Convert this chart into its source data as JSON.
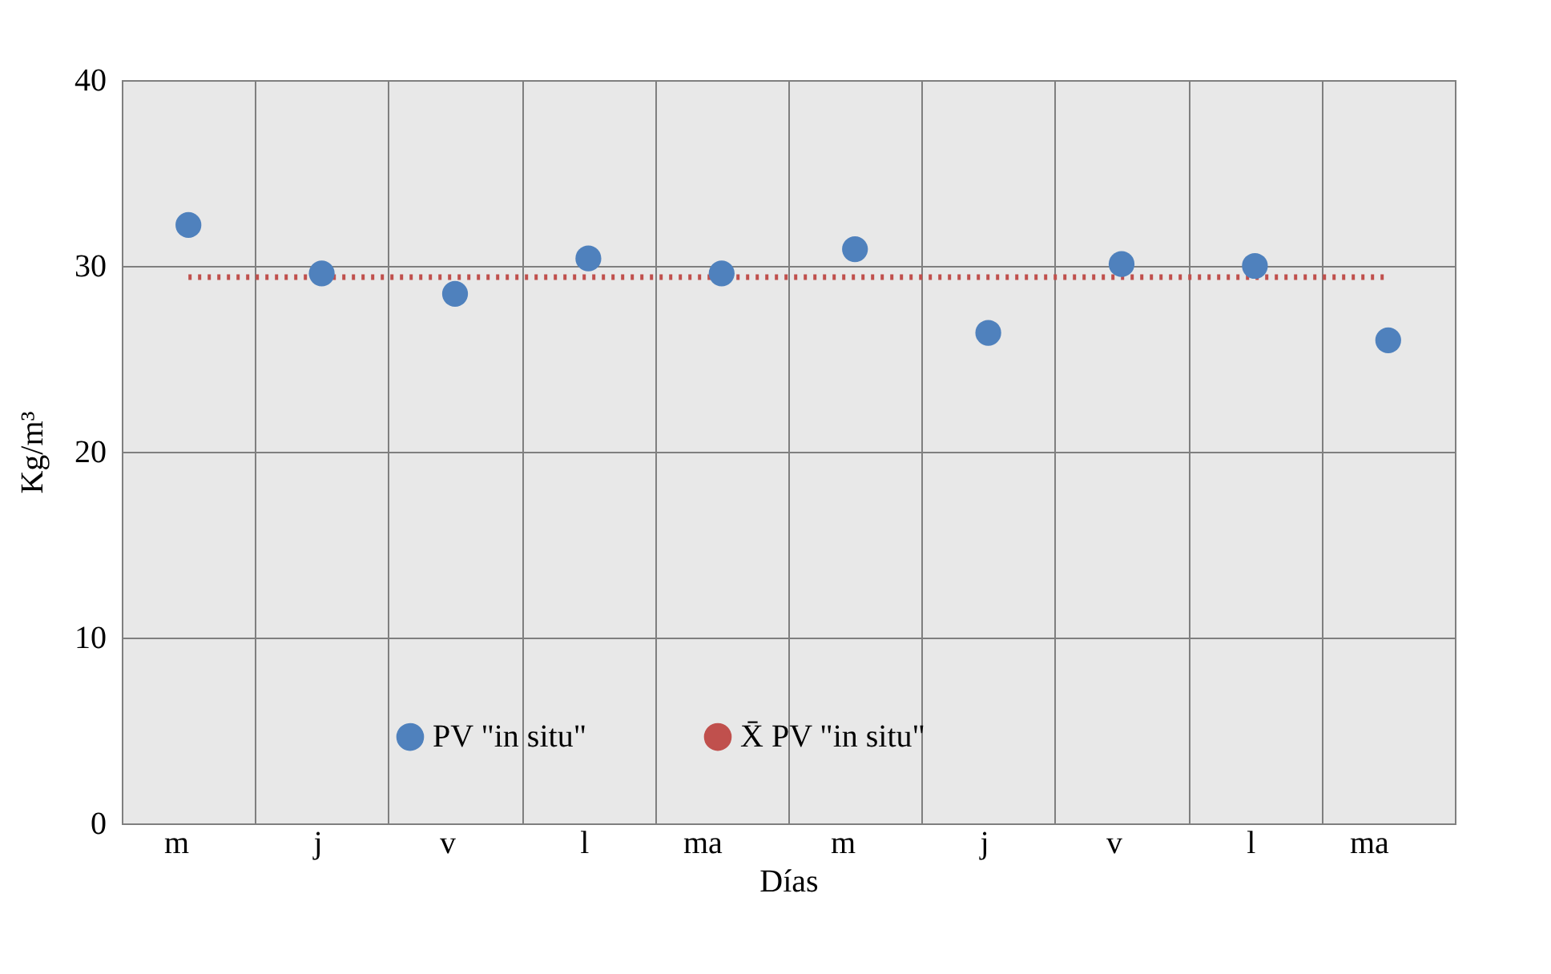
{
  "chart_data": {
    "type": "scatter",
    "xlabel": "Días",
    "ylabel": "Kg/m³",
    "categories": [
      "m",
      "j",
      "v",
      "l",
      "ma",
      "m",
      "j",
      "v",
      "l",
      "ma"
    ],
    "series": [
      {
        "name": "PV \"in situ\"",
        "color": "#4f81bd",
        "marker": "circle",
        "values": [
          32.2,
          29.6,
          28.5,
          30.4,
          29.6,
          30.9,
          26.4,
          30.1,
          30.0,
          26.0
        ]
      },
      {
        "name": "X̄ PV \"in situ\"",
        "color": "#c0504d",
        "type": "line",
        "line_style": "dotted",
        "marker": "none",
        "values": [
          29.4,
          29.4,
          29.4,
          29.4,
          29.4,
          29.4,
          29.4,
          29.4,
          29.4,
          29.4
        ]
      }
    ],
    "ylim": [
      0,
      40
    ],
    "yticks": [
      0,
      10,
      20,
      30,
      40
    ],
    "grid": true,
    "legend": "bottom"
  }
}
